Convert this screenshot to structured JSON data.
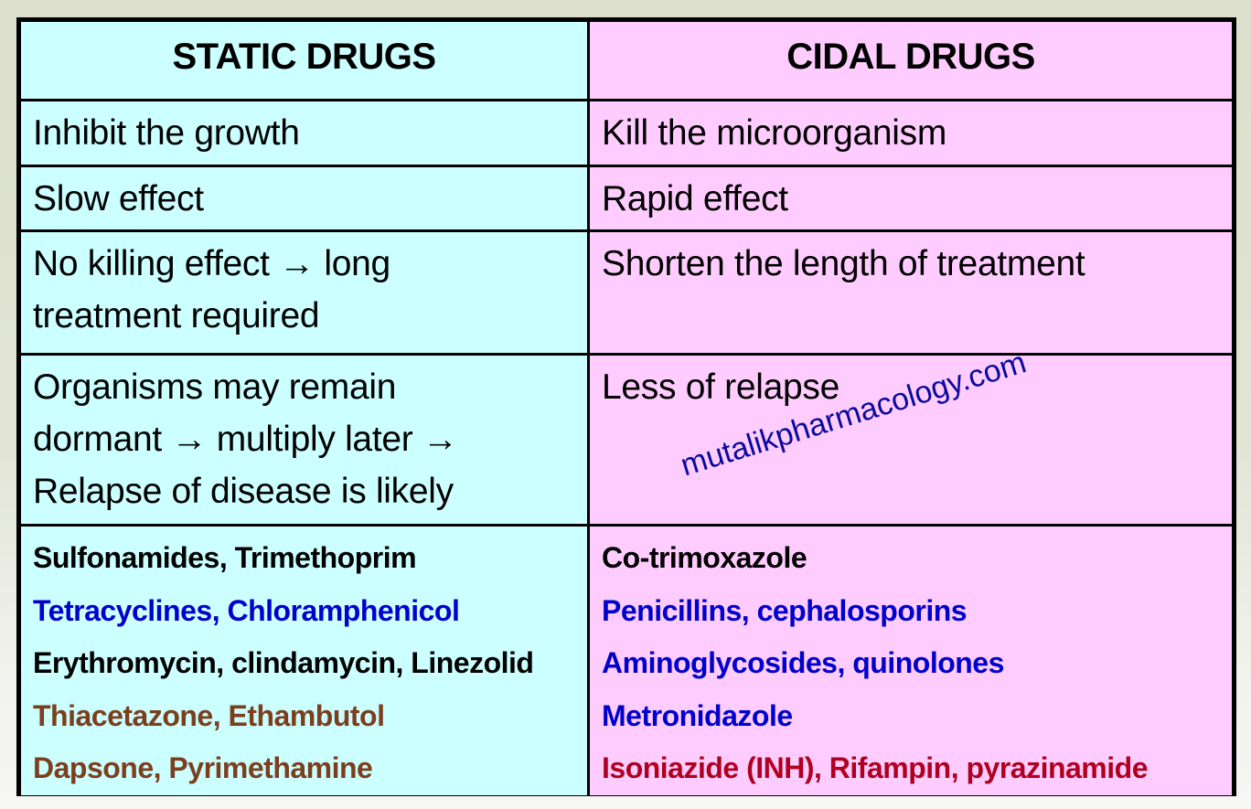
{
  "table": {
    "columns": [
      {
        "header": "STATIC DRUGS",
        "background": "#ccffff"
      },
      {
        "header": "CIDAL DRUGS",
        "background": "#ffccff"
      }
    ],
    "rows": [
      {
        "static": "Inhibit the growth",
        "cidal": "Kill the microorganism"
      },
      {
        "static": "Slow effect",
        "cidal": "Rapid effect"
      },
      {
        "static": "No killing effect → long\ntreatment required",
        "cidal": "Shorten the length of treatment"
      },
      {
        "static": "Organisms may remain\ndormant → multiply later →\nRelapse of disease is likely",
        "cidal": "Less of relapse"
      }
    ],
    "examples": {
      "static": [
        {
          "text": "Sulfonamides, Trimethoprim",
          "color": "#000000"
        },
        {
          "text": "Tetracyclines, Chloramphenicol",
          "color": "#0000cc"
        },
        {
          "text": "Erythromycin, clindamycin, Linezolid",
          "color": "#000000"
        },
        {
          "text": "Thiacetazone, Ethambutol",
          "color": "#7b3f1e"
        },
        {
          "text": "Dapsone, Pyrimethamine",
          "color": "#7b3f1e"
        }
      ],
      "cidal": [
        {
          "text": "Co-trimoxazole",
          "color": "#000000"
        },
        {
          "text": "Penicillins, cephalosporins",
          "color": "#0000cc"
        },
        {
          "text": "Aminoglycosides, quinolones",
          "color": "#0000cc"
        },
        {
          "text": "Metronidazole",
          "color": "#0000cc"
        },
        {
          "text": "Isoniazide (INH), Rifampin, pyrazinamide",
          "color": "#b00020"
        }
      ]
    }
  },
  "watermark": {
    "text": "mutalikpharmacology.com",
    "color": "#0a0a9c"
  }
}
